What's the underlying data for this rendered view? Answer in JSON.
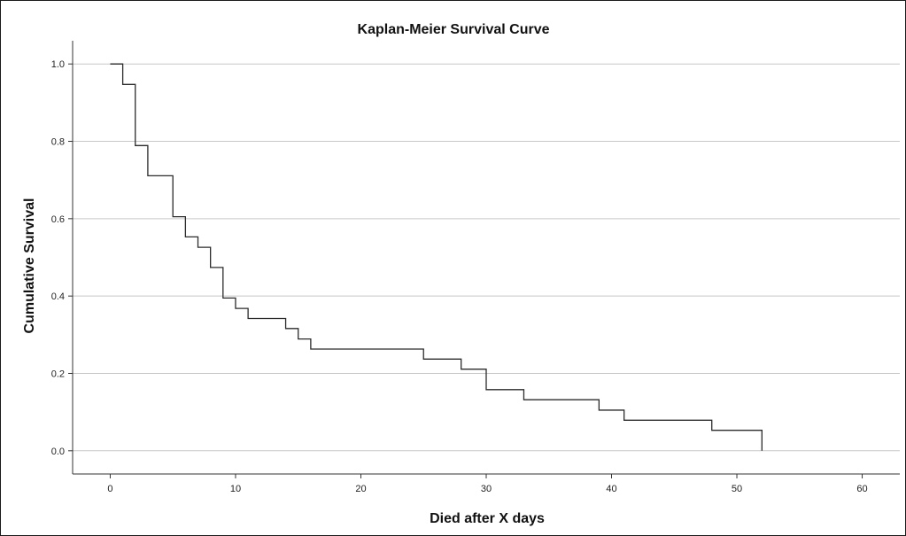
{
  "chart_data": {
    "type": "line",
    "subtype": "step",
    "title": "Kaplan-Meier Survival Curve",
    "xlabel": "Died after X days",
    "ylabel": "Cumulative Survival",
    "xlim": [
      -3,
      63
    ],
    "ylim": [
      -0.06,
      1.06
    ],
    "x_ticks": [
      0,
      10,
      20,
      30,
      40,
      50,
      60
    ],
    "x_tick_labels": [
      "0",
      "10",
      "20",
      "30",
      "40",
      "50",
      "60"
    ],
    "y_ticks": [
      0.0,
      0.2,
      0.4,
      0.6,
      0.8,
      1.0
    ],
    "y_tick_labels": [
      "0.0",
      "0.2",
      "0.4",
      "0.6",
      "0.8",
      "1.0"
    ],
    "grid": "horizontal",
    "legend": "none",
    "series": [
      {
        "x": [
          0,
          1,
          2,
          3,
          5,
          6,
          7,
          8,
          9,
          10,
          11,
          14,
          15,
          16,
          25,
          28,
          30,
          33,
          39,
          41,
          48,
          52
        ],
        "y": [
          1.0,
          0.947,
          0.789,
          0.711,
          0.605,
          0.553,
          0.526,
          0.474,
          0.395,
          0.368,
          0.342,
          0.316,
          0.289,
          0.263,
          0.237,
          0.211,
          0.158,
          0.132,
          0.105,
          0.079,
          0.053,
          0.026
        ],
        "final_drop_to": 0.0,
        "color": "#2b2b2b"
      }
    ]
  }
}
